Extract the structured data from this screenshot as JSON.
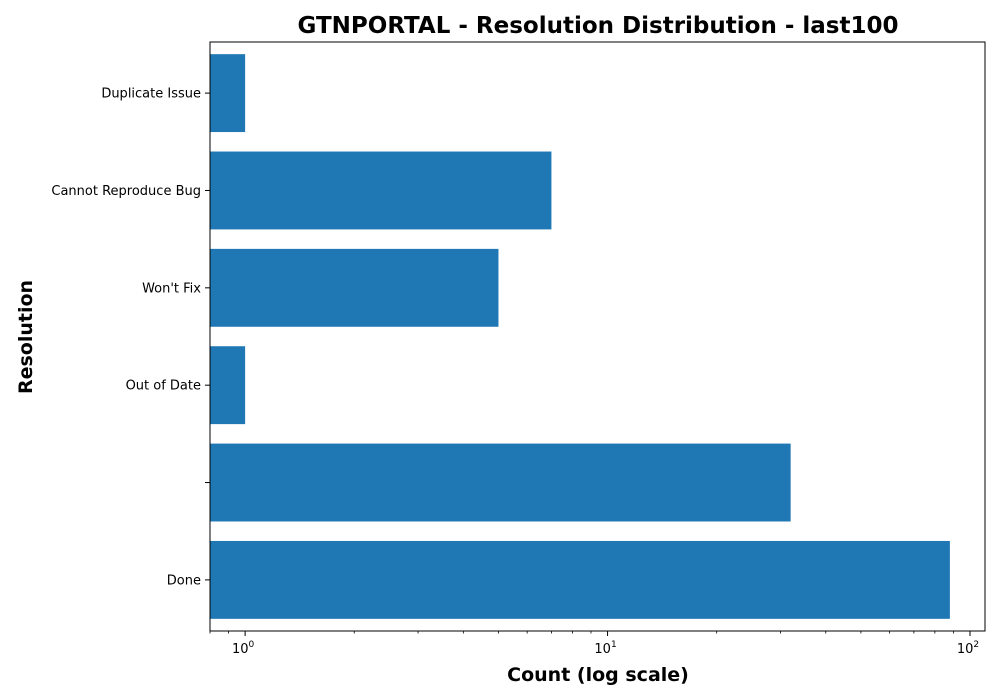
{
  "chart_data": {
    "type": "bar",
    "orientation": "horizontal",
    "title": "GTNPORTAL - Resolution Distribution - last100",
    "xlabel": "Count (log scale)",
    "ylabel": "Resolution",
    "x_scale": "log",
    "xlim": [
      0.8,
      110
    ],
    "categories": [
      "Done",
      "",
      "Out of Date",
      "Won't Fix",
      "Cannot Reproduce Bug",
      "Duplicate Issue"
    ],
    "values": [
      88,
      32,
      1,
      5,
      7,
      1
    ],
    "x_ticks": [
      {
        "value": 1,
        "base": "10",
        "exp": "0"
      },
      {
        "value": 10,
        "base": "10",
        "exp": "1"
      },
      {
        "value": 100,
        "base": "10",
        "exp": "2"
      }
    ],
    "colors": {
      "bar": "#1f77b4",
      "axis": "#000000"
    },
    "grid": false,
    "legend": "none"
  }
}
